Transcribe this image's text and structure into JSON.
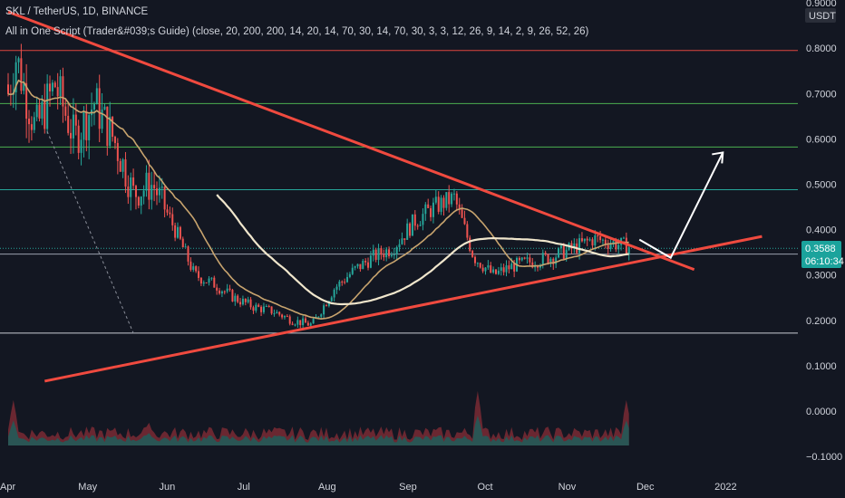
{
  "header": {
    "symbol_line": "SKL / TetherUS, 1D, BINANCE",
    "indicator_line": "All in One Script (Trader&#039;s Guide) (close, 20, 200, 200, 14, 20, 14, 70, 30, 14, 70, 30, 3, 3, 12, 26, 9, 14, 2, 9, 26, 52, 26)"
  },
  "colors": {
    "background": "#131722",
    "up": "#26a69a",
    "down": "#ef5350",
    "trendline": "#f04a3f",
    "sma_short": "#c8a46e",
    "sma_long": "#f0e6cc",
    "price_badge": "#1ba39c"
  },
  "price_axis": {
    "unit_label": "USDT",
    "ticks": [
      "0.9000",
      "0.8000",
      "0.7000",
      "0.6000",
      "0.5000",
      "0.4000",
      "0.3000",
      "0.2000",
      "0.1000",
      "0.0000",
      "−0.1000"
    ]
  },
  "time_axis": {
    "ticks": [
      "Apr",
      "May",
      "Jun",
      "Jul",
      "Aug",
      "Sep",
      "Oct",
      "Nov",
      "Dec",
      "2022"
    ]
  },
  "last_price": {
    "value": "0.3588",
    "countdown": "06:10:34"
  },
  "chart_data": {
    "type": "candlestick",
    "ylim": [
      -0.12,
      0.9
    ],
    "x_range_months": [
      "2021-04",
      "2022-01"
    ],
    "horizontal_levels": [
      {
        "value": 0.795,
        "color": "#e0473f"
      },
      {
        "value": 0.678,
        "color": "#4caf50"
      },
      {
        "value": 0.582,
        "color": "#4caf50"
      },
      {
        "value": 0.488,
        "color": "#26a69a"
      },
      {
        "value": 0.346,
        "color": "#9aa0ad"
      },
      {
        "value": 0.172,
        "color": "#c9ccd4"
      }
    ],
    "trendlines": [
      {
        "from": [
          "2021-04-01",
          0.88
        ],
        "to": [
          "2021-12-20",
          0.312
        ],
        "color": "#f04a3f"
      },
      {
        "from": [
          "2021-04-15",
          0.066
        ],
        "to": [
          "2022-01-15",
          0.385
        ],
        "color": "#f04a3f"
      }
    ],
    "projection": {
      "points": [
        [
          "2021-11-29",
          0.378
        ],
        [
          "2021-12-11",
          0.338
        ],
        [
          "2021-12-31",
          0.57
        ]
      ],
      "color": "#ffffff"
    },
    "price_series": {
      "dates_start": "2021-04-01",
      "approx_closes_by_month": {
        "Apr": [
          0.78,
          0.62,
          0.72,
          0.6
        ],
        "May": [
          0.68,
          0.6,
          0.48,
          0.5
        ],
        "Jun": [
          0.4,
          0.3,
          0.28,
          0.25
        ],
        "Jul": [
          0.23,
          0.22,
          0.2,
          0.19
        ],
        "Aug": [
          0.27,
          0.31,
          0.34,
          0.36
        ],
        "Sep": [
          0.42,
          0.45,
          0.47,
          0.34
        ],
        "Oct": [
          0.3,
          0.32,
          0.33,
          0.34
        ],
        "Nov": [
          0.36,
          0.38,
          0.37,
          0.36
        ]
      }
    },
    "volume_oscillator": {
      "range": [
        -0.1,
        0.1
      ],
      "notable_spikes": [
        [
          "2021-04-03",
          0.1
        ],
        [
          "2021-05-25",
          0.05
        ],
        [
          "2021-09-28",
          0.12
        ],
        [
          "2021-11-24",
          0.1
        ]
      ]
    }
  }
}
